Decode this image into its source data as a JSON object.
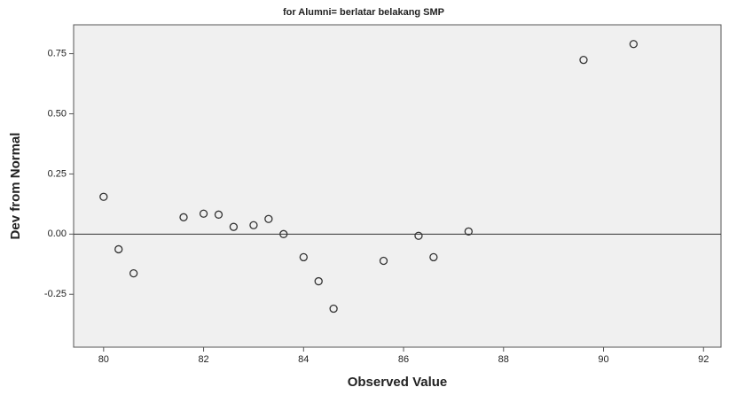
{
  "chart_data": {
    "type": "scatter",
    "title": "for Alumni= berlatar belakang SMP",
    "x_label": "Observed Value",
    "y_label": "Dev from Normal",
    "x": [
      80.0,
      80.3,
      80.6,
      81.6,
      82.0,
      82.3,
      82.6,
      83.0,
      83.3,
      83.6,
      84.0,
      84.3,
      84.6,
      85.6,
      86.3,
      86.6,
      87.3,
      89.6,
      90.6
    ],
    "values": [
      0.155,
      -0.063,
      -0.163,
      0.07,
      0.085,
      0.081,
      0.03,
      0.037,
      0.063,
      0.0,
      -0.096,
      -0.196,
      -0.31,
      -0.111,
      -0.007,
      -0.096,
      0.011,
      0.724,
      0.79
    ],
    "color": "#333333",
    "xlim": [
      79.4,
      92.35
    ],
    "ylim": [
      -0.47,
      0.87
    ],
    "xticks": [
      80,
      82,
      84,
      86,
      88,
      90,
      92
    ],
    "yticks": [
      -0.25,
      {
        "value": 0,
        "label": "0.00"
      },
      0.25,
      {
        "value": 0.5,
        "label": "0.50"
      },
      0.75
    ],
    "reference_line": 0
  }
}
